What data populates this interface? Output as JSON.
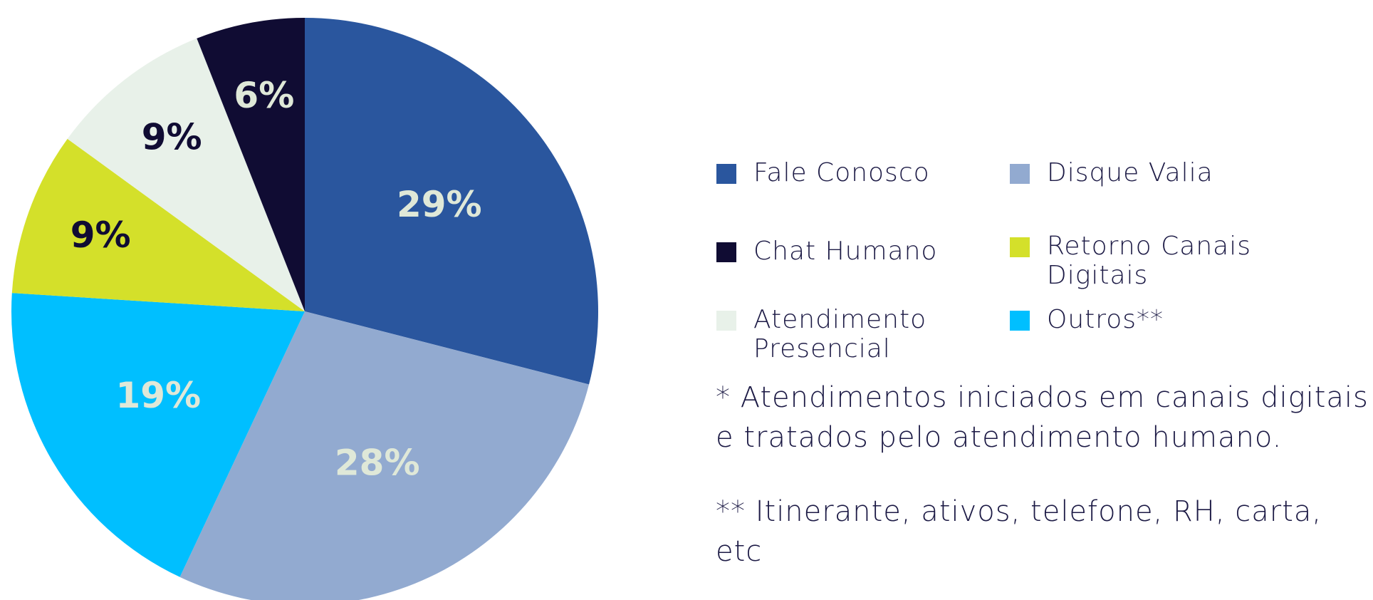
{
  "chart_data": {
    "type": "pie",
    "categories": [
      "Fale Conosco",
      "Disque Valia",
      "Outros**",
      "Retorno Canais Digitais",
      "Atendimento Presencial",
      "Chat Humano"
    ],
    "values": [
      29,
      28,
      19,
      9,
      9,
      6
    ],
    "value_labels": [
      "29%",
      "28%",
      "19%",
      "9%",
      "9%",
      "6%"
    ],
    "colors": [
      "#2a569e",
      "#92aad0",
      "#00bfff",
      "#d4e02a",
      "#e8f1e9",
      "#100c33"
    ],
    "notes": [
      "* Atendimentos iniciados em canais digitais e tratados pelo atendimento humano.",
      "** Itinerante, ativos, telefone, RH, carta, etc"
    ]
  }
}
